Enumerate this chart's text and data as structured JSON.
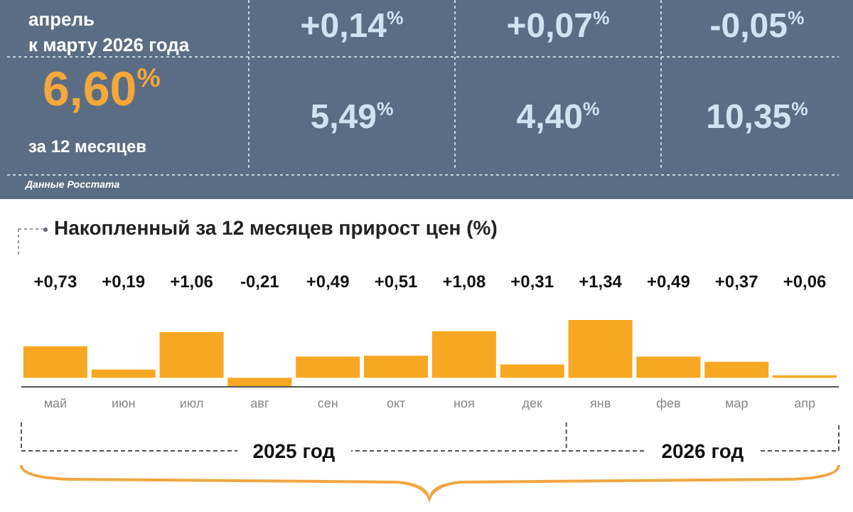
{
  "chart_data": [
    {
      "type": "other",
      "annotations": [
        "апрель",
        "к марту 2026 года",
        "+0,14%",
        "+0,07%",
        "-0,05%",
        "6,60%",
        "за 12 месяцев",
        "5,49%",
        "4,40%",
        "10,35%",
        "Данные Росстата"
      ]
    },
    {
      "type": "bar",
      "title": "Накопленный за 12 месяцев прирост цен (%)",
      "categories": [
        "май",
        "июн",
        "июл",
        "авг",
        "сен",
        "окт",
        "ноя",
        "дек",
        "янв",
        "фев",
        "мар",
        "апр"
      ],
      "values": [
        0.73,
        0.19,
        1.06,
        -0.21,
        0.49,
        0.51,
        1.08,
        0.31,
        1.34,
        0.49,
        0.37,
        0.06
      ],
      "color": "#f7a823",
      "value_labels": [
        "+0,73",
        "+0,19",
        "+1,06",
        "-0,21",
        "+0,49",
        "+0,51",
        "+1,08",
        "+0,31",
        "+1,34",
        "+0,49",
        "+0,37",
        "+0,06"
      ],
      "annotations": [
        "2025 год",
        "2026 год"
      ]
    }
  ]
}
